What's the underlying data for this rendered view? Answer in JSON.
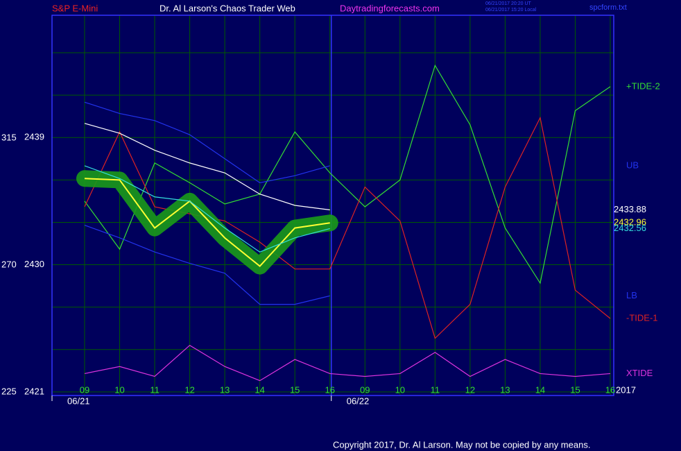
{
  "header": {
    "instrument": "S&P E-Mini",
    "title": "Dr. Al Larson's Chaos Trader Web",
    "site": "Daytradingforecasts.com",
    "time_ut": "06/21/2017 20:20 UT",
    "time_local": "06/21/2017 15:20 Local",
    "file": "spcform.txt"
  },
  "footer": "Copyright 2017, Dr. Al Larson. May not be copied by any means.",
  "chart_data": {
    "type": "line",
    "categories": [
      "09",
      "10",
      "11",
      "12",
      "13",
      "14",
      "15",
      "16",
      "09",
      "10",
      "11",
      "12",
      "13",
      "14",
      "15",
      "16"
    ],
    "days": [
      {
        "index": 0,
        "label": "06/21"
      },
      {
        "index": 8,
        "label": "06/22"
      }
    ],
    "year": "2017",
    "ylim": [
      2420.75,
      2447.65
    ],
    "yticks": [
      2421,
      2430,
      2439
    ],
    "grid_values": [
      2421,
      2424,
      2427,
      2430,
      2433,
      2436,
      2439,
      2442,
      2445
    ],
    "y2lim": [
      223.77,
      358.5
    ],
    "y2ticks": [
      225,
      270,
      315
    ],
    "grid": true,
    "series": [
      {
        "name": "+TIDE-2",
        "color": "#33dd33",
        "values": [
          2434.5,
          2431.1,
          2437.2,
          2435.8,
          2434.3,
          2435.0,
          2439.4,
          2436.5,
          2434.1,
          2436.0,
          2444.1,
          2439.9,
          2432.6,
          2428.7,
          2440.9,
          2442.6
        ]
      },
      {
        "name": "UB",
        "color": "#2233ee",
        "values": [
          2441.5,
          2440.7,
          2440.2,
          2439.2,
          2437.5,
          2435.8,
          2436.3,
          2437.0,
          null,
          null,
          null,
          null,
          null,
          null,
          null,
          null
        ]
      },
      {
        "name": "LB",
        "color": "#2233ee",
        "values": [
          2432.8,
          2431.9,
          2430.9,
          2430.1,
          2429.4,
          2427.2,
          2427.2,
          2427.8,
          null,
          null,
          null,
          null,
          null,
          null,
          null,
          null
        ]
      },
      {
        "name": "-TIDE-1",
        "color": "#dd2222",
        "values": [
          2434.1,
          2439.4,
          2434.1,
          2433.6,
          2433.1,
          2431.6,
          2429.7,
          2429.7,
          2435.5,
          2433.1,
          2424.8,
          2427.2,
          2435.5,
          2440.4,
          2428.2,
          2426.2
        ]
      },
      {
        "name": "XTIDE",
        "color": "#dd33dd",
        "values": [
          2422.3,
          2422.8,
          2422.1,
          2424.3,
          2422.8,
          2421.8,
          2423.3,
          2422.3,
          2422.1,
          2422.3,
          2423.8,
          2422.1,
          2423.3,
          2422.3,
          2422.1,
          2422.3
        ]
      },
      {
        "color": "#ffffff",
        "values": [
          2440.0,
          2439.3,
          2438.1,
          2437.2,
          2436.5,
          2435.0,
          2434.2,
          2433.88,
          null,
          null,
          null,
          null,
          null,
          null,
          null,
          null
        ]
      },
      {
        "color": "#ffff33",
        "halo": "#1a9a1a",
        "values": [
          2436.1,
          2436.0,
          2432.6,
          2434.5,
          2431.9,
          2429.9,
          2432.6,
          2432.96,
          null,
          null,
          null,
          null,
          null,
          null,
          null,
          null
        ]
      },
      {
        "color": "#33dddd",
        "values": [
          2437.0,
          2436.1,
          2434.8,
          2434.5,
          2432.6,
          2430.9,
          2431.9,
          2432.56,
          null,
          null,
          null,
          null,
          null,
          null,
          null,
          null
        ]
      }
    ]
  }
}
